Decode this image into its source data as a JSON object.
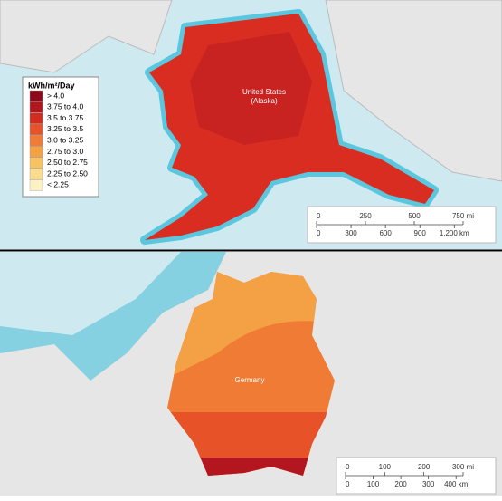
{
  "legend": {
    "title": "kWh/m²/Day",
    "items": [
      {
        "label": "> 4.0",
        "color": "#8c0b1b"
      },
      {
        "label": "3.75 to 4.0",
        "color": "#b3161f"
      },
      {
        "label": "3.5 to 3.75",
        "color": "#d32b20"
      },
      {
        "label": "3.25 to 3.5",
        "color": "#e75229"
      },
      {
        "label": "3.0 to 3.25",
        "color": "#ef7b35"
      },
      {
        "label": "2.75 to 3.0",
        "color": "#f4a145"
      },
      {
        "label": "2.50 to 2.75",
        "color": "#f7c261"
      },
      {
        "label": "2.25 to 2.50",
        "color": "#fadc8c"
      },
      {
        "label": "< 2.25",
        "color": "#fdf2c4"
      }
    ]
  },
  "maps": [
    {
      "label": [
        "United States",
        "(Alaska)"
      ],
      "scale": {
        "miles": [
          "0",
          "250",
          "500",
          "750 mi"
        ],
        "km": [
          "0",
          "300",
          "600",
          "900",
          "1,200 km"
        ]
      }
    },
    {
      "label": [
        "Germany"
      ],
      "scale": {
        "miles": [
          "0",
          "100",
          "200",
          "300 mi"
        ],
        "km": [
          "0",
          "100",
          "200",
          "300",
          "400 km"
        ]
      }
    }
  ]
}
